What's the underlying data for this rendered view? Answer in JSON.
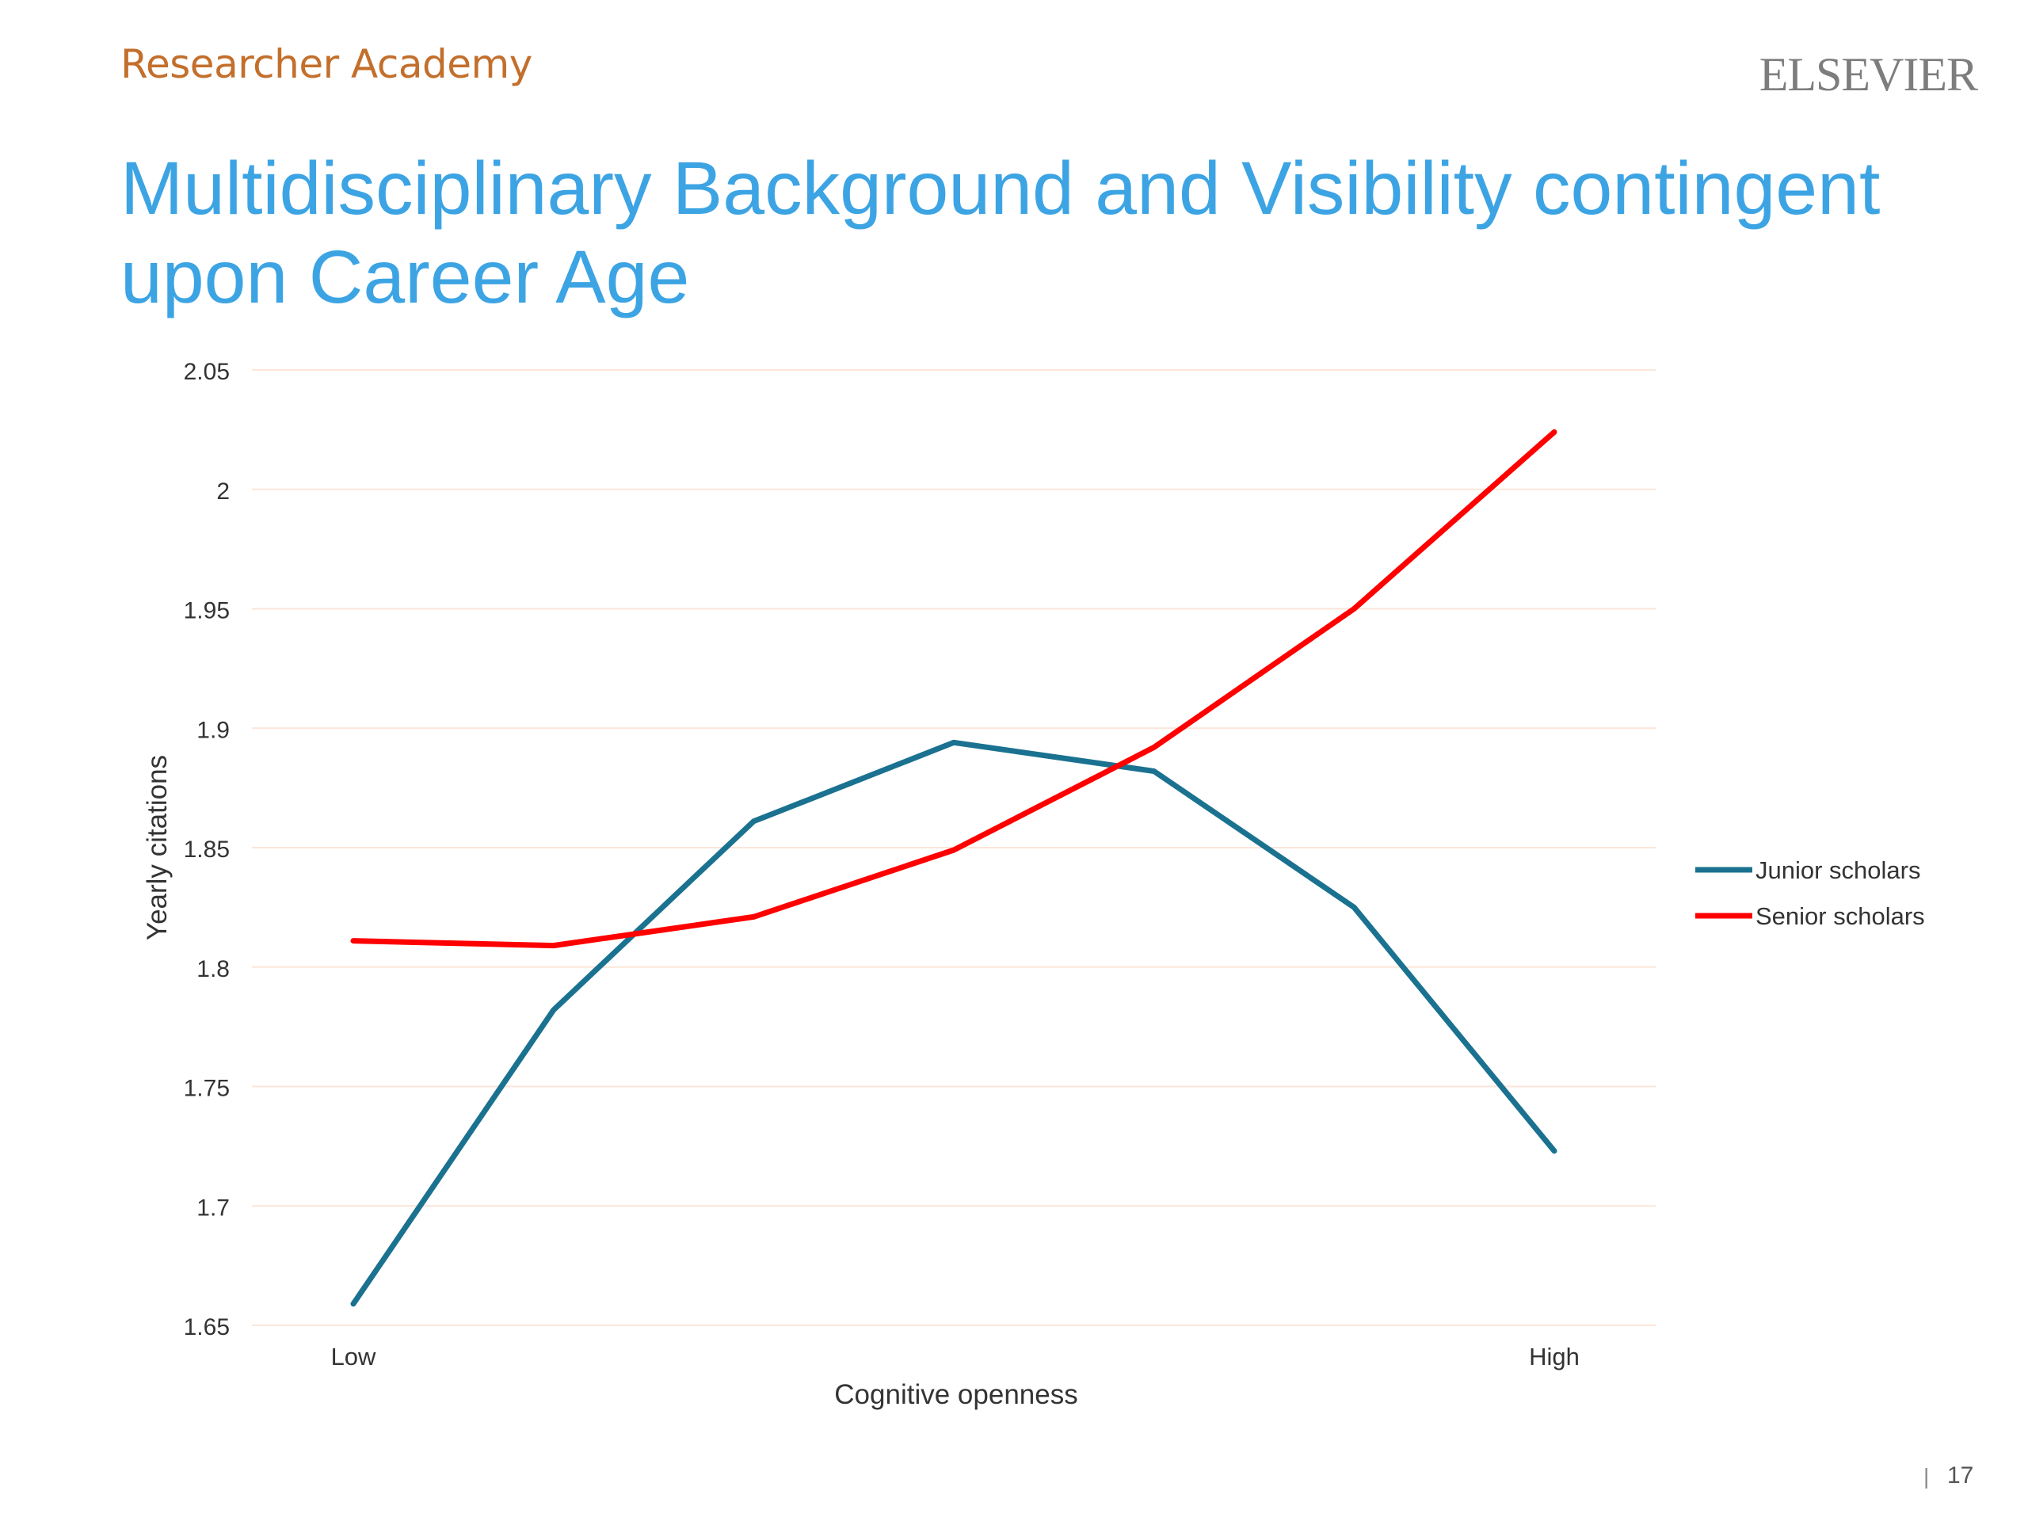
{
  "header": {
    "brand": "Researcher Academy",
    "publisher": "ELSEVIER"
  },
  "slide": {
    "title_line1": "Multidisciplinary Background and Visibility contingent",
    "title_line2": "upon Career Age",
    "page_number": "17",
    "separator": "|"
  },
  "chart_data": {
    "type": "line",
    "title": "",
    "xlabel": "Cognitive openness",
    "ylabel": "Yearly citations",
    "x": [
      1,
      2,
      3,
      4,
      5,
      6,
      7
    ],
    "x_tick_labels": [
      {
        "x": 1,
        "label": "Low"
      },
      {
        "x": 7,
        "label": "High"
      }
    ],
    "ylim": [
      1.65,
      2.05
    ],
    "y_ticks": [
      "1.65",
      "1.7",
      "1.75",
      "1.8",
      "1.85",
      "1.9",
      "1.95",
      "2",
      "2.05"
    ],
    "grid": true,
    "legend_position": "right",
    "series": [
      {
        "name": "Junior scholars",
        "color": "#1a7290",
        "values": [
          1.659,
          1.782,
          1.861,
          1.894,
          1.882,
          1.825,
          1.723
        ]
      },
      {
        "name": "Senior scholars",
        "color": "#ff0000",
        "values": [
          1.811,
          1.809,
          1.821,
          1.849,
          1.892,
          1.95,
          2.024
        ]
      }
    ]
  }
}
